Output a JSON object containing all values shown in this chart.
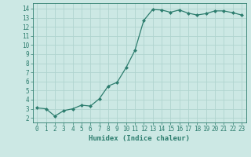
{
  "x": [
    0,
    1,
    2,
    3,
    4,
    5,
    6,
    7,
    8,
    9,
    10,
    11,
    12,
    13,
    14,
    15,
    16,
    17,
    18,
    19,
    20,
    21,
    22,
    23
  ],
  "y": [
    3.1,
    3.0,
    2.2,
    2.8,
    3.0,
    3.4,
    3.3,
    4.1,
    5.5,
    5.9,
    7.5,
    9.4,
    12.7,
    13.9,
    13.85,
    13.6,
    13.85,
    13.5,
    13.3,
    13.45,
    13.75,
    13.75,
    13.55,
    13.3
  ],
  "line_color": "#2d7d6e",
  "marker": "D",
  "markersize": 2.0,
  "linewidth": 0.9,
  "bg_color": "#cce8e4",
  "grid_color": "#b0d4cf",
  "xlabel": "Humidex (Indice chaleur)",
  "xlabel_fontsize": 6.5,
  "xlabel_color": "#2d7d6e",
  "tick_color": "#2d7d6e",
  "tick_fontsize": 5.5,
  "ylim": [
    1.5,
    14.6
  ],
  "xlim": [
    -0.5,
    23.5
  ],
  "yticks": [
    2,
    3,
    4,
    5,
    6,
    7,
    8,
    9,
    10,
    11,
    12,
    13,
    14
  ],
  "xticks": [
    0,
    1,
    2,
    3,
    4,
    5,
    6,
    7,
    8,
    9,
    10,
    11,
    12,
    13,
    14,
    15,
    16,
    17,
    18,
    19,
    20,
    21,
    22,
    23
  ]
}
